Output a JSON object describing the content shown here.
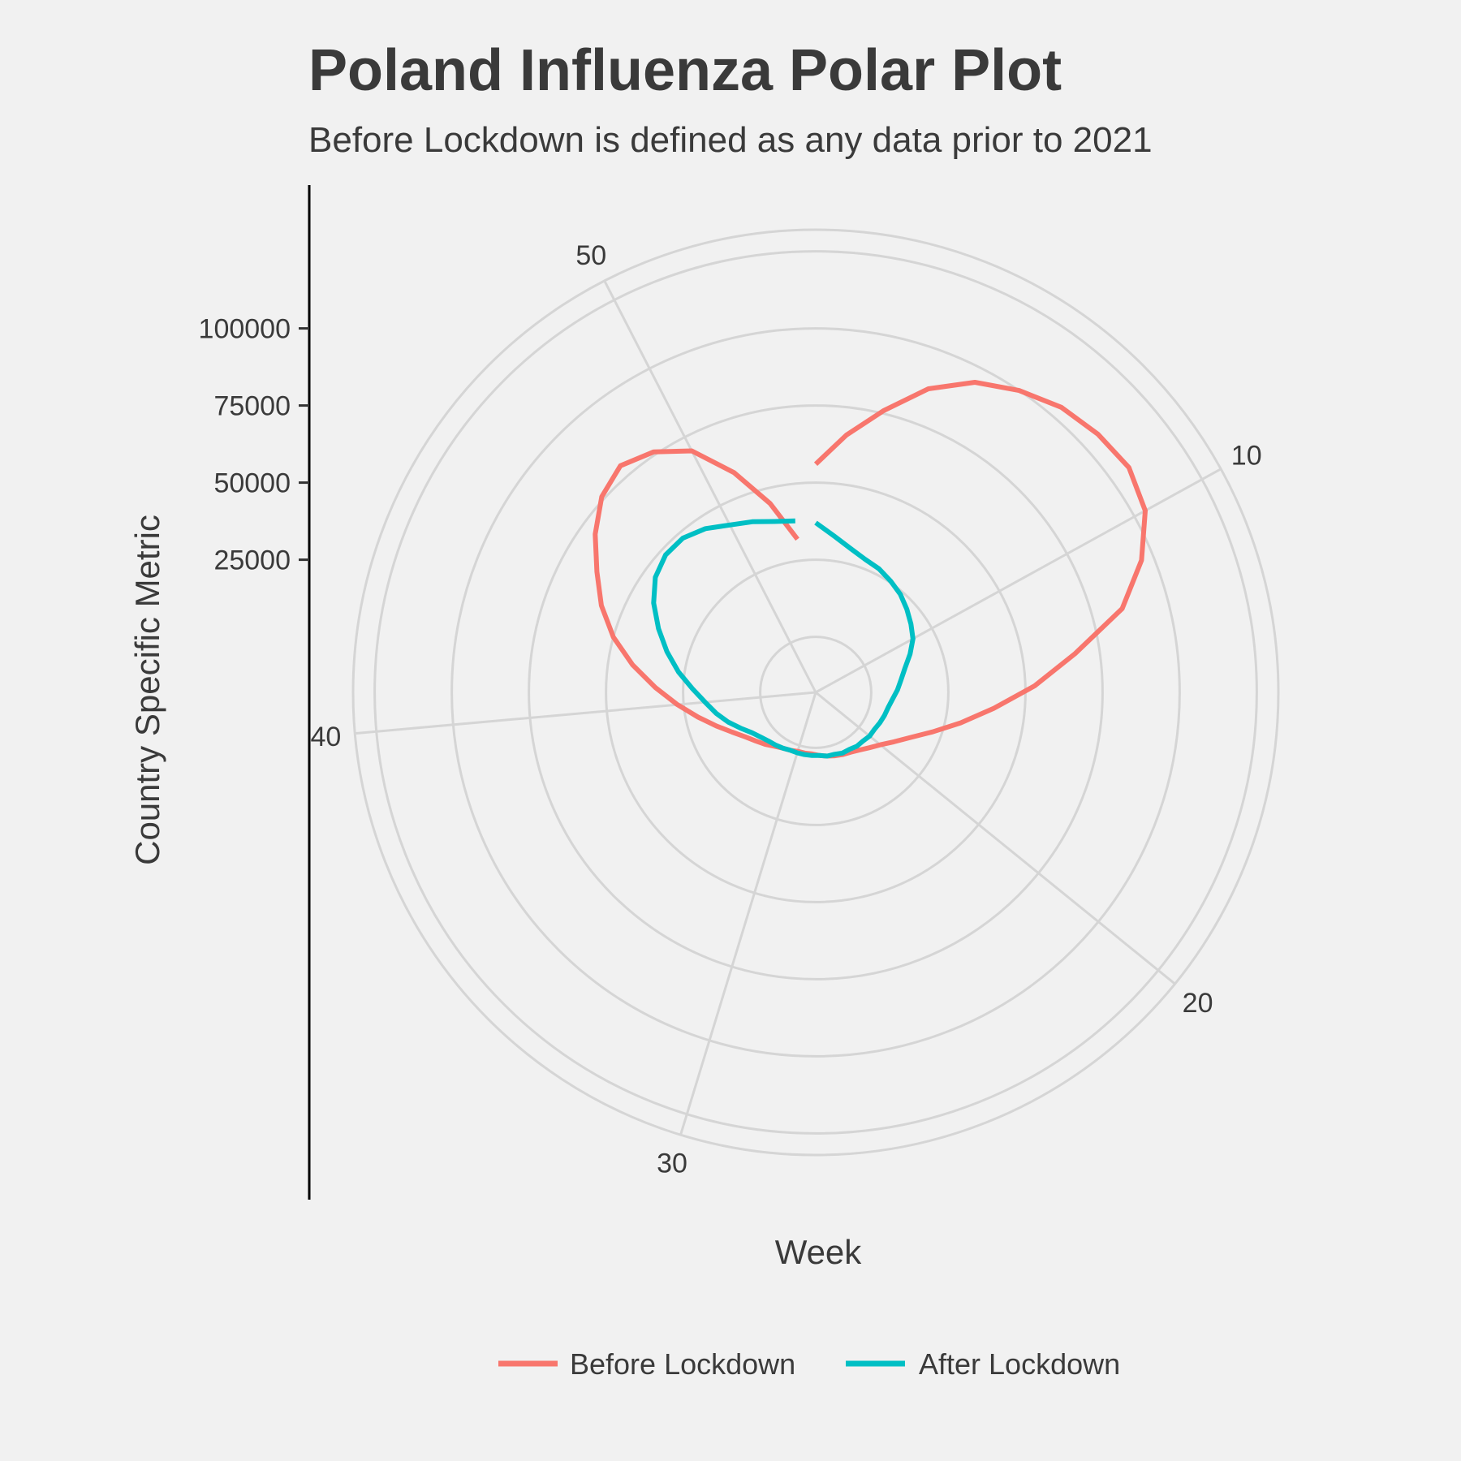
{
  "chart_data": {
    "type": "line",
    "coordinate_system": "polar",
    "title": "Poland Influenza Polar Plot",
    "subtitle": "Before Lockdown is defined as any data prior to 2021",
    "xlabel": "Week",
    "ylabel": "Country Specific Metric",
    "x_ticks": [
      10,
      20,
      30,
      40,
      50
    ],
    "y_ticks": [
      25000,
      50000,
      75000,
      100000
    ],
    "ylim": [
      -18000,
      132000
    ],
    "xlim": [
      1,
      53
    ],
    "grid": true,
    "legend_position": "bottom",
    "series": [
      {
        "name": "Before Lockdown",
        "color": "#F8766D",
        "values": [
          [
            1,
            56000
          ],
          [
            2,
            66000
          ],
          [
            3,
            76000
          ],
          [
            4,
            87000
          ],
          [
            5,
            95000
          ],
          [
            6,
            100000
          ],
          [
            7,
            104000
          ],
          [
            8,
            106000
          ],
          [
            9,
            107000
          ],
          [
            10,
            104000
          ],
          [
            11,
            96000
          ],
          [
            12,
            85000
          ],
          [
            13,
            67000
          ],
          [
            14,
            53000
          ],
          [
            15,
            40000
          ],
          [
            16,
            30000
          ],
          [
            17,
            22000
          ],
          [
            18,
            16000
          ],
          [
            19,
            12000
          ],
          [
            20,
            9000
          ],
          [
            21,
            7000
          ],
          [
            22,
            5500
          ],
          [
            23,
            4500
          ],
          [
            24,
            4000
          ],
          [
            25,
            3500
          ],
          [
            26,
            3000
          ],
          [
            27,
            2500
          ],
          [
            28,
            2000
          ],
          [
            29,
            2000
          ],
          [
            30,
            2000
          ],
          [
            31,
            2500
          ],
          [
            32,
            3000
          ],
          [
            33,
            4000
          ],
          [
            34,
            5500
          ],
          [
            35,
            7000
          ],
          [
            36,
            9000
          ],
          [
            37,
            12000
          ],
          [
            38,
            16000
          ],
          [
            39,
            21000
          ],
          [
            40,
            27000
          ],
          [
            41,
            34000
          ],
          [
            42,
            42000
          ],
          [
            43,
            50000
          ],
          [
            44,
            57000
          ],
          [
            45,
            63000
          ],
          [
            46,
            70000
          ],
          [
            47,
            76000
          ],
          [
            48,
            79000
          ],
          [
            49,
            76000
          ],
          [
            50,
            70000
          ],
          [
            51,
            58000
          ],
          [
            52,
            45000
          ],
          [
            53,
            32000
          ]
        ]
      },
      {
        "name": "After Lockdown",
        "color": "#00BFC4",
        "values": [
          [
            1,
            37000
          ],
          [
            2,
            33000
          ],
          [
            3,
            30000
          ],
          [
            4,
            28000
          ],
          [
            5,
            27000
          ],
          [
            6,
            25500
          ],
          [
            7,
            24000
          ],
          [
            8,
            22000
          ],
          [
            9,
            20000
          ],
          [
            10,
            18000
          ],
          [
            11,
            15000
          ],
          [
            12,
            12000
          ],
          [
            13,
            10000
          ],
          [
            14,
            8500
          ],
          [
            15,
            7000
          ],
          [
            16,
            6000
          ],
          [
            17,
            5500
          ],
          [
            18,
            5000
          ],
          [
            19,
            4500
          ],
          [
            20,
            4500
          ],
          [
            21,
            4000
          ],
          [
            22,
            4000
          ],
          [
            23,
            3500
          ],
          [
            24,
            3500
          ],
          [
            25,
            3000
          ],
          [
            26,
            3000
          ],
          [
            27,
            2500
          ],
          [
            28,
            2500
          ],
          [
            29,
            2500
          ],
          [
            30,
            2500
          ],
          [
            31,
            2500
          ],
          [
            32,
            3000
          ],
          [
            33,
            3500
          ],
          [
            34,
            4000
          ],
          [
            35,
            5000
          ],
          [
            36,
            6500
          ],
          [
            37,
            9000
          ],
          [
            38,
            12000
          ],
          [
            39,
            15000
          ],
          [
            40,
            18000
          ],
          [
            41,
            22000
          ],
          [
            42,
            27000
          ],
          [
            43,
            32000
          ],
          [
            44,
            37000
          ],
          [
            45,
            42000
          ],
          [
            46,
            46000
          ],
          [
            47,
            48000
          ],
          [
            48,
            48000
          ],
          [
            49,
            46000
          ],
          [
            50,
            43000
          ],
          [
            51,
            41000
          ],
          [
            52,
            39000
          ],
          [
            53,
            38000
          ]
        ]
      }
    ]
  }
}
